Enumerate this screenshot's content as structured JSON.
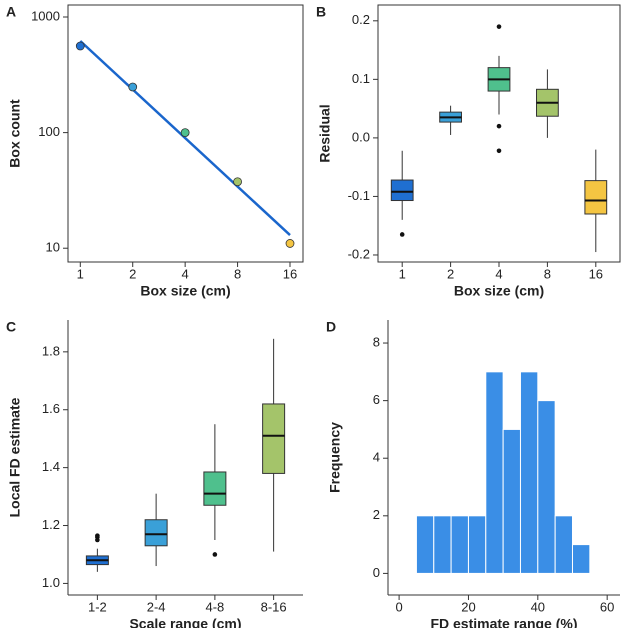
{
  "chart_data": [
    {
      "type": "scatter",
      "panel": "A",
      "xlabel": "Box size (cm)",
      "ylabel": "Box count",
      "x": [
        1,
        2,
        4,
        8,
        16
      ],
      "values": [
        561,
        248,
        100,
        37.6,
        11
      ],
      "colors": [
        "#1f6fd1",
        "#3aa0d8",
        "#4fc08d",
        "#a4c46a",
        "#f4c542"
      ],
      "fit": {
        "x": [
          1,
          16
        ],
        "values": [
          620,
          13
        ],
        "color": "#1a66cc"
      },
      "xlog": true,
      "ylog": true,
      "xlim": [
        0.85,
        19
      ],
      "ylim": [
        7.6,
        1270
      ],
      "xticks": [
        1,
        2,
        4,
        8,
        16
      ],
      "yticks": [
        10,
        100,
        1000
      ],
      "frame": true
    },
    {
      "type": "box",
      "panel": "B",
      "xlabel": "Box size (cm)",
      "ylabel": "Residual",
      "categories": [
        "1",
        "2",
        "4",
        "8",
        "16"
      ],
      "colors": [
        "#1f6fd1",
        "#3aa0d8",
        "#4fc08d",
        "#a4c46a",
        "#f4c542"
      ],
      "boxes": [
        {
          "whislo": -0.14,
          "q1": -0.107,
          "med": -0.092,
          "q3": -0.072,
          "whishi": -0.022,
          "fliers": [
            -0.165
          ]
        },
        {
          "whislo": 0.005,
          "q1": 0.027,
          "med": 0.035,
          "q3": 0.044,
          "whishi": 0.055,
          "fliers": []
        },
        {
          "whislo": 0.04,
          "q1": 0.08,
          "med": 0.1,
          "q3": 0.12,
          "whishi": 0.14,
          "fliers": [
            0.19,
            0.02,
            -0.022
          ]
        },
        {
          "whislo": 0.0,
          "q1": 0.037,
          "med": 0.06,
          "q3": 0.083,
          "whishi": 0.117,
          "fliers": []
        },
        {
          "whislo": -0.195,
          "q1": -0.13,
          "med": -0.107,
          "q3": -0.073,
          "whishi": -0.02,
          "fliers": []
        }
      ],
      "ylim": [
        -0.212,
        0.227
      ],
      "yticks": [
        -0.2,
        -0.1,
        {
          "value": 0,
          "label": "0.0"
        },
        0.1,
        0.2
      ],
      "frame": true
    },
    {
      "type": "box",
      "panel": "C",
      "xlabel": "Scale range (cm)",
      "ylabel": "Local FD estimate",
      "categories": [
        "1-2",
        "2-4",
        "4-8",
        "8-16"
      ],
      "colors": [
        "#1f6fd1",
        "#3aa0d8",
        "#4fc08d",
        "#a4c46a"
      ],
      "boxes": [
        {
          "whislo": 1.04,
          "q1": 1.065,
          "med": 1.08,
          "q3": 1.095,
          "whishi": 1.12,
          "fliers": [
            1.15,
            1.16,
            1.165
          ]
        },
        {
          "whislo": 1.06,
          "q1": 1.13,
          "med": 1.17,
          "q3": 1.22,
          "whishi": 1.31,
          "fliers": []
        },
        {
          "whislo": 1.15,
          "q1": 1.27,
          "med": 1.31,
          "q3": 1.385,
          "whishi": 1.55,
          "fliers": [
            1.1
          ]
        },
        {
          "whislo": 1.11,
          "q1": 1.38,
          "med": 1.51,
          "q3": 1.62,
          "whishi": 1.845,
          "fliers": []
        }
      ],
      "ylim": [
        0.96,
        1.91
      ],
      "yticks": [
        {
          "value": 1,
          "label": "1.0"
        },
        1.2,
        1.4,
        1.6,
        1.8
      ],
      "frame": false
    },
    {
      "type": "histogram",
      "panel": "D",
      "xlabel": "FD estimate range (%)",
      "ylabel": "Frequency",
      "bins": [
        5,
        10,
        15,
        20,
        25,
        30,
        35,
        40,
        45,
        50,
        55
      ],
      "counts": [
        2,
        2,
        2,
        2,
        7,
        5,
        7,
        6,
        2,
        1
      ],
      "color": "#3a8ee6",
      "xlim": [
        -3.2,
        63.7
      ],
      "ylim": [
        -0.75,
        8.8
      ],
      "xticks": [
        0,
        20,
        40,
        60
      ],
      "yticks": [
        0,
        2,
        4,
        6,
        8
      ],
      "frame": false
    }
  ]
}
